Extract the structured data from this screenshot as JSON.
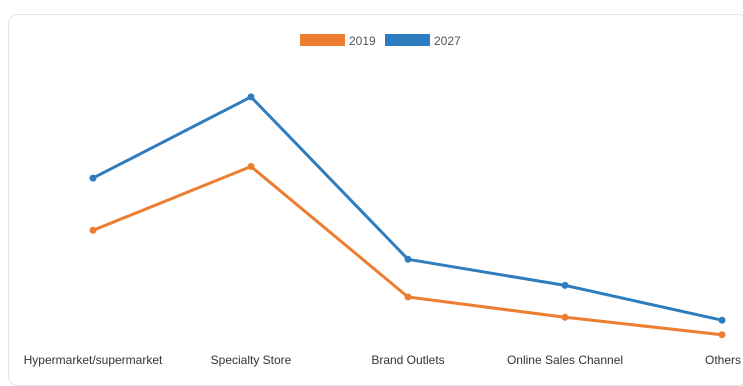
{
  "chart_data": {
    "type": "line",
    "categories": [
      "Hypermarket/supermarket",
      "Specialty Store",
      "Brand Outlets",
      "Online Sales Channel",
      "Others"
    ],
    "series": [
      {
        "name": "2019",
        "color": "#ED7D31",
        "values": [
          43,
          65,
          20,
          13,
          7
        ]
      },
      {
        "name": "2027",
        "color": "#2E7EBF",
        "values": [
          61,
          89,
          33,
          24,
          12
        ]
      }
    ],
    "ylim": [
      0,
      110
    ],
    "grid": false,
    "legend": "top-center",
    "title": "",
    "xlabel": "",
    "ylabel": ""
  }
}
